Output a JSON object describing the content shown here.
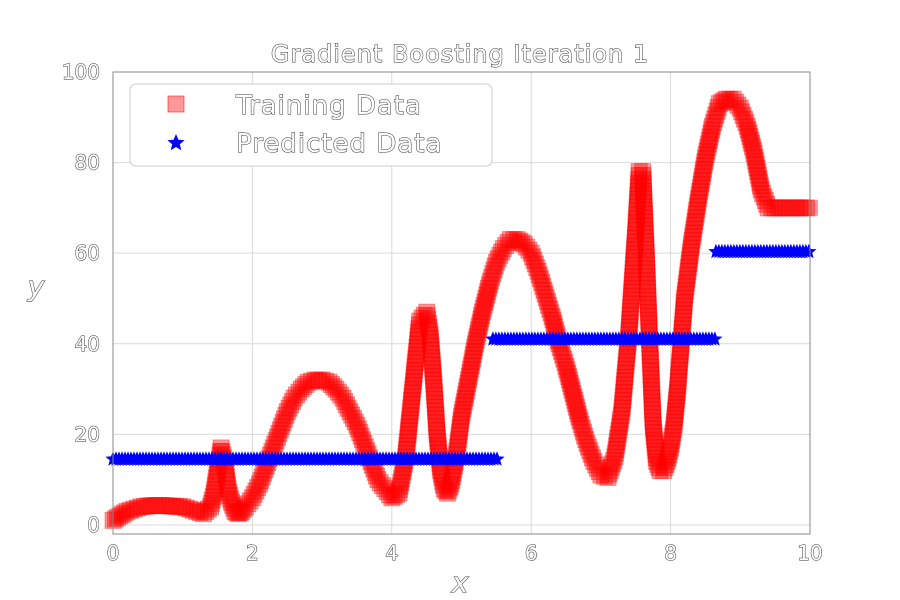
{
  "chart_data": {
    "type": "scatter",
    "title": "Gradient Boosting Iteration 1",
    "xlabel": "x",
    "ylabel": "y",
    "xlim": [
      0,
      10
    ],
    "ylim": [
      -2,
      100
    ],
    "xticks": [
      "0",
      "2",
      "4",
      "6",
      "8",
      "10"
    ],
    "yticks": [
      "0",
      "20",
      "40",
      "60",
      "80",
      "100"
    ],
    "grid": true,
    "legend_position": "top-left",
    "series": [
      {
        "name": "Training Data",
        "marker": "square",
        "color": "#ff0000",
        "x": [
          0.0,
          0.1,
          0.2,
          0.3,
          0.4,
          0.5,
          0.6,
          0.7,
          0.8,
          0.9,
          1.0,
          1.1,
          1.2,
          1.3,
          1.4,
          1.45,
          1.5,
          1.55,
          1.6,
          1.65,
          1.7,
          1.75,
          1.8,
          1.85,
          1.9,
          2.0,
          2.1,
          2.2,
          2.3,
          2.4,
          2.5,
          2.6,
          2.7,
          2.8,
          2.9,
          3.0,
          3.1,
          3.2,
          3.3,
          3.4,
          3.5,
          3.6,
          3.7,
          3.8,
          3.9,
          4.0,
          4.1,
          4.2,
          4.3,
          4.4,
          4.5,
          4.55,
          4.6,
          4.65,
          4.7,
          4.75,
          4.8,
          4.85,
          4.9,
          4.95,
          5.0,
          5.1,
          5.2,
          5.3,
          5.4,
          5.5,
          5.6,
          5.7,
          5.8,
          5.9,
          6.0,
          6.1,
          6.2,
          6.3,
          6.4,
          6.5,
          6.6,
          6.7,
          6.8,
          6.9,
          7.0,
          7.1,
          7.2,
          7.3,
          7.4,
          7.5,
          7.55,
          7.6,
          7.65,
          7.7,
          7.75,
          7.8,
          7.85,
          7.9,
          7.95,
          8.0,
          8.05,
          8.1,
          8.15,
          8.2,
          8.3,
          8.4,
          8.5,
          8.6,
          8.7,
          8.8,
          8.9,
          9.0,
          9.1,
          9.2,
          9.3,
          9.4,
          9.5,
          9.6,
          9.7,
          9.8,
          9.9,
          10.0
        ],
        "y": [
          1,
          2,
          3,
          3.5,
          4,
          4.2,
          4.3,
          4.3,
          4.2,
          4.1,
          4,
          3.5,
          3,
          2.5,
          4,
          7,
          12,
          17,
          14,
          8,
          5,
          3,
          2.5,
          3,
          4,
          6,
          9,
          13,
          17,
          21,
          25,
          28,
          30,
          31.5,
          32,
          32,
          31.5,
          30,
          28,
          25,
          22,
          18,
          14,
          10,
          8,
          6,
          7,
          15,
          30,
          45,
          47,
          42,
          32,
          20,
          12,
          8,
          7,
          9,
          13,
          18,
          24,
          32,
          40,
          47,
          53,
          58,
          61,
          63,
          63,
          62,
          60,
          56,
          51,
          46,
          40,
          35,
          29,
          23,
          18,
          14,
          11,
          10.5,
          15,
          25,
          42,
          65,
          78,
          78,
          60,
          40,
          22,
          14,
          12,
          12,
          14,
          17,
          22,
          30,
          40,
          50,
          62,
          72,
          81,
          88,
          93,
          94,
          94,
          92,
          88,
          82,
          74,
          70,
          70,
          70,
          70,
          70,
          70,
          70
        ]
      },
      {
        "name": "Predicted Data",
        "marker": "star",
        "color": "#0000ff",
        "segments": [
          {
            "x0": 0.0,
            "x1": 5.55,
            "y": 14.5
          },
          {
            "x0": 5.45,
            "x1": 8.65,
            "y": 41
          },
          {
            "x0": 8.65,
            "x1": 10.0,
            "y": 60.3
          }
        ]
      }
    ]
  }
}
